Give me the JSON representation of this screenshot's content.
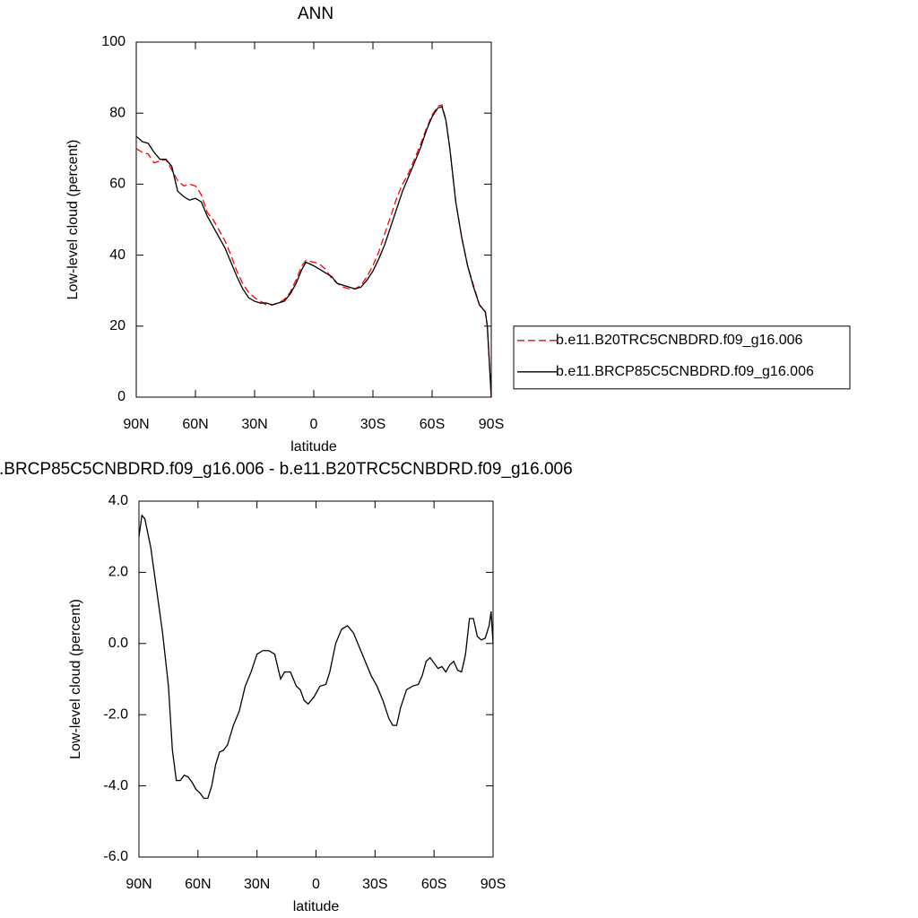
{
  "chart_data": [
    {
      "type": "line",
      "title": "ANN",
      "xlabel": "latitude",
      "ylabel": "Low-level cloud (percent)",
      "x": [
        90,
        87,
        84,
        81,
        78,
        75,
        72,
        69,
        66,
        63,
        60,
        57,
        54,
        51,
        48,
        45,
        42,
        39,
        36,
        33,
        30,
        27,
        24,
        21,
        18,
        15,
        12,
        9,
        6,
        4,
        0,
        -3,
        -6,
        -9,
        -12,
        -15,
        -18,
        -21,
        -24,
        -27,
        -30,
        -33,
        -36,
        -39,
        -42,
        -45,
        -48,
        -51,
        -54,
        -57,
        -60,
        -63,
        -65,
        -67,
        -69,
        -72,
        -75,
        -78,
        -81,
        -84,
        -87,
        -88,
        -89,
        -90
      ],
      "series": [
        {
          "name": "b.e11.B20TRC5CNBDRD.f09_g16.006",
          "color": "#ff0000",
          "dashed": true,
          "values": [
            70,
            69,
            68.5,
            66,
            66.5,
            67,
            64,
            61,
            59.5,
            60,
            59.5,
            57,
            52,
            50,
            47,
            44,
            40,
            35.5,
            32,
            29.5,
            28,
            27,
            26,
            26,
            26.5,
            27.5,
            29.5,
            33,
            37,
            38.5,
            38,
            37.5,
            36,
            33.5,
            32,
            31,
            30.5,
            30.5,
            31.5,
            34,
            37,
            41,
            46,
            51,
            56,
            60,
            63,
            67,
            71,
            75.5,
            79.5,
            82,
            82.3,
            78,
            70,
            55,
            45,
            37,
            31.5,
            26,
            24,
            20,
            10,
            0
          ]
        },
        {
          "name": "b.e11.BRCP85C5CNBDRD.f09_g16.006",
          "color": "#000000",
          "dashed": false,
          "values": [
            73.5,
            72,
            71.5,
            69,
            67,
            67,
            65,
            58,
            56.5,
            55.5,
            56,
            55,
            51,
            48,
            45,
            42,
            38,
            34,
            30.5,
            28,
            27,
            26.5,
            26.5,
            26,
            26.5,
            27,
            29,
            32,
            36,
            38,
            37,
            36,
            35,
            34,
            32,
            31.5,
            31,
            30.5,
            31,
            33,
            35.5,
            39,
            43,
            48,
            53,
            58,
            62,
            66,
            70,
            75,
            79,
            81.5,
            81.8,
            78,
            70,
            55,
            45,
            37,
            31,
            26,
            24,
            20,
            10,
            0
          ]
        }
      ],
      "xlim": [
        90,
        -90
      ],
      "xticks": [
        {
          "value": 90,
          "label": "90N"
        },
        {
          "value": 60,
          "label": "60N"
        },
        {
          "value": 30,
          "label": "30N"
        },
        0,
        {
          "value": -30,
          "label": "30S"
        },
        {
          "value": -60,
          "label": "60S"
        },
        {
          "value": -90,
          "label": "90S"
        }
      ],
      "ylim": [
        0,
        100
      ],
      "yticks": [
        0,
        20,
        40,
        60,
        80,
        100
      ],
      "legend": "right"
    },
    {
      "type": "line",
      "title": ".BRCP85C5CNBDRD.f09_g16.006 - b.e11.B20TRC5CNBDRD.f09_g16.006",
      "xlabel": "latitude",
      "ylabel": "Low-level cloud (percent)",
      "x": [
        90,
        88.5,
        87,
        84,
        81,
        78,
        75,
        73,
        71,
        69,
        67,
        65,
        63,
        61,
        59,
        57,
        55,
        53,
        51,
        49,
        47,
        45,
        42,
        39,
        36,
        33,
        30,
        27,
        24,
        21,
        18,
        16,
        13,
        10,
        8,
        6,
        4,
        1,
        -2,
        -5,
        -7,
        -10,
        -13,
        -16,
        -19,
        -22,
        -25,
        -28,
        -31,
        -34,
        -37,
        -39,
        -41,
        -43,
        -46,
        -49,
        -52,
        -54,
        -56,
        -58,
        -60,
        -62,
        -64,
        -66,
        -68,
        -70,
        -72,
        -74,
        -76,
        -78,
        -80,
        -82,
        -84,
        -86,
        -88,
        -89,
        -90
      ],
      "series": [
        {
          "color": "#000000",
          "dashed": false,
          "values": [
            3.0,
            3.6,
            3.5,
            2.7,
            1.5,
            0.3,
            -1.2,
            -3,
            -3.85,
            -3.85,
            -3.7,
            -3.75,
            -3.9,
            -4.1,
            -4.2,
            -4.35,
            -4.35,
            -4.0,
            -3.4,
            -3.05,
            -3.0,
            -2.85,
            -2.3,
            -1.9,
            -1.2,
            -0.8,
            -0.3,
            -0.2,
            -0.2,
            -0.3,
            -1.0,
            -0.8,
            -0.8,
            -1.2,
            -1.3,
            -1.6,
            -1.7,
            -1.5,
            -1.2,
            -1.15,
            -0.8,
            0.0,
            0.4,
            0.5,
            0.3,
            -0.1,
            -0.5,
            -0.9,
            -1.2,
            -1.6,
            -2.1,
            -2.3,
            -2.3,
            -1.8,
            -1.3,
            -1.2,
            -1.15,
            -0.9,
            -0.5,
            -0.4,
            -0.55,
            -0.7,
            -0.65,
            -0.8,
            -0.6,
            -0.5,
            -0.75,
            -0.8,
            -0.3,
            0.7,
            0.7,
            0.2,
            0.1,
            0.15,
            0.5,
            0.9,
            0.0
          ]
        }
      ],
      "xlim": [
        90,
        -90
      ],
      "xticks": [
        {
          "value": 90,
          "label": "90N"
        },
        {
          "value": 60,
          "label": "60N"
        },
        {
          "value": 30,
          "label": "30N"
        },
        0,
        {
          "value": -30,
          "label": "30S"
        },
        {
          "value": -60,
          "label": "60S"
        },
        {
          "value": -90,
          "label": "90S"
        }
      ],
      "ylim": [
        -6,
        4
      ],
      "yticks": [
        {
          "value": -6,
          "label": "-6.0"
        },
        {
          "value": -4,
          "label": "-4.0"
        },
        {
          "value": -2,
          "label": "-2.0"
        },
        {
          "value": 0,
          "label": "0.0"
        },
        {
          "value": 2,
          "label": "2.0"
        },
        {
          "value": 4,
          "label": "4.0"
        }
      ]
    }
  ]
}
